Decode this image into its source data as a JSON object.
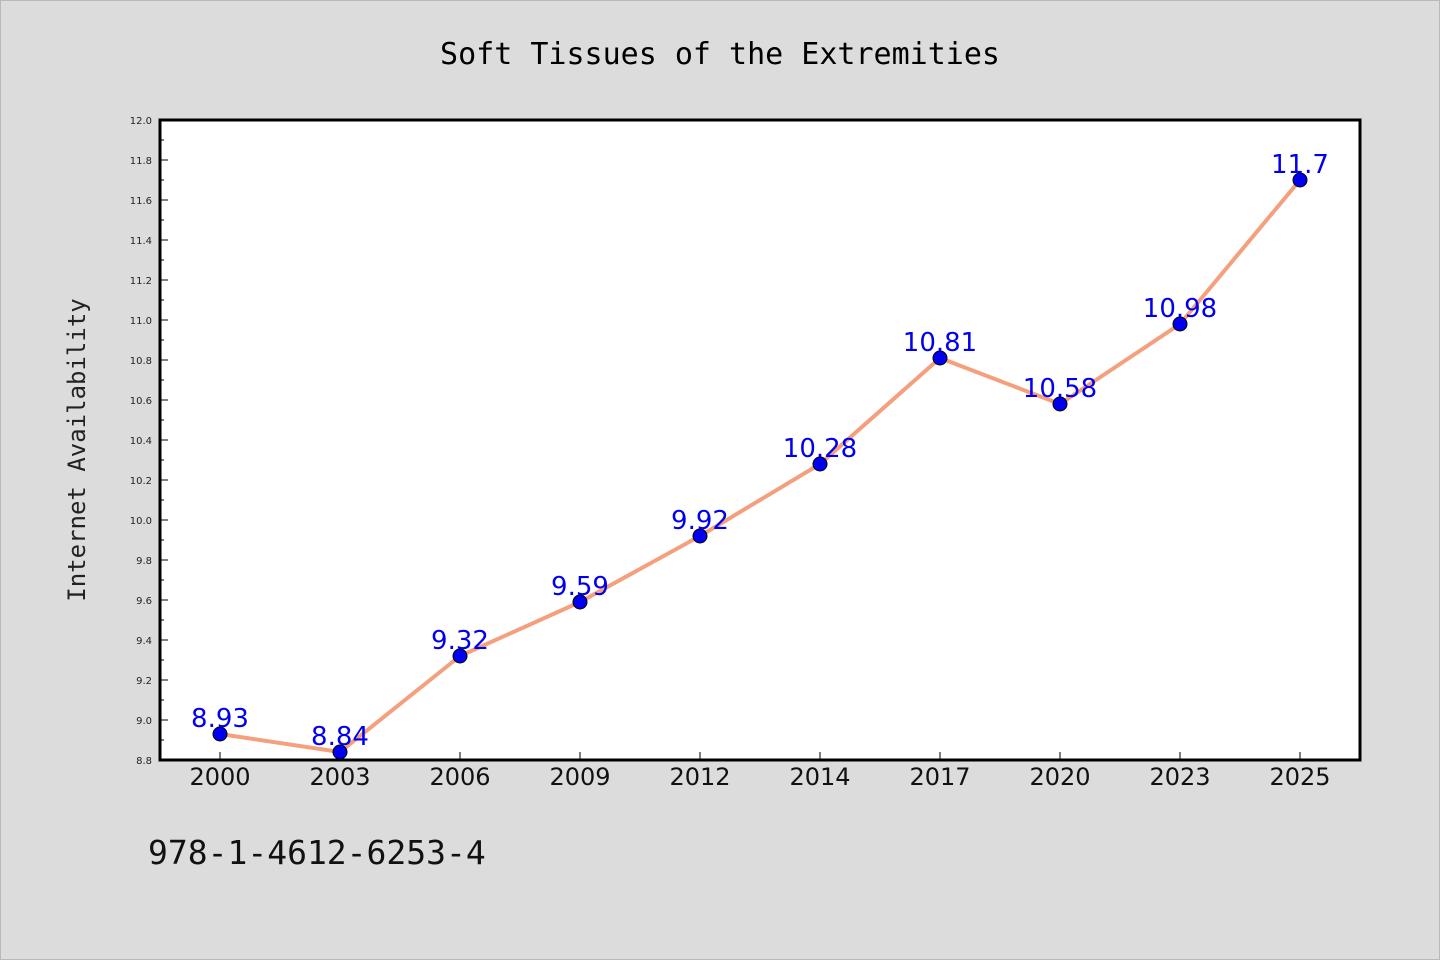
{
  "chart_data": {
    "type": "line",
    "title": "Soft Tissues of the Extremities",
    "xlabel": "",
    "ylabel": "Internet Availability",
    "categories": [
      "2000",
      "2003",
      "2006",
      "2009",
      "2012",
      "2014",
      "2017",
      "2020",
      "2023",
      "2025"
    ],
    "series": [
      {
        "values": [
          8.93,
          8.84,
          9.32,
          9.59,
          9.92,
          10.28,
          10.81,
          10.58,
          10.98,
          11.7
        ],
        "data_labels": [
          "8.93",
          "8.84",
          "9.32",
          "9.59",
          "9.92",
          "10.28",
          "10.81",
          "10.58",
          "10.98",
          "11.7"
        ],
        "line_color": "#f4a07e",
        "marker_color": "#0000ee",
        "label_color": "#0000ee"
      }
    ],
    "ylim": [
      8.8,
      12.0
    ],
    "yticks": [
      "8.8",
      "9.0",
      "9.2",
      "9.4",
      "9.6",
      "9.8",
      "10.0",
      "10.2",
      "10.4",
      "10.6",
      "10.8",
      "11.0",
      "11.2",
      "11.4",
      "11.6",
      "11.8",
      "12.0"
    ],
    "grid": false,
    "legend": "none"
  },
  "footer": {
    "isbn": "978-1-4612-6253-4"
  },
  "colors": {
    "background": "#dcdcdc",
    "plot_background": "#ffffff",
    "axis": "#000000"
  }
}
